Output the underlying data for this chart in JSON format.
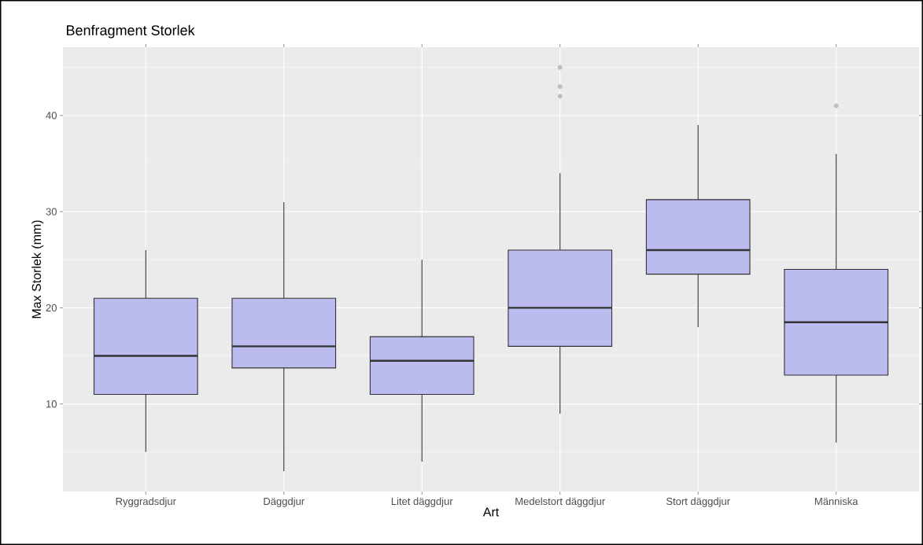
{
  "chart_data": {
    "type": "box",
    "title": "Benfragment Storlek",
    "xlabel": "Art",
    "ylabel": "Max Storlek (mm)",
    "categories": [
      "Ryggradsdjur",
      "Däggdjur",
      "Litet däggdjur",
      "Medelstort däggdjur",
      "Stort däggdjur",
      "Människa"
    ],
    "boxes": [
      {
        "low": 5,
        "q1": 11,
        "median": 15,
        "q3": 21,
        "high": 26
      },
      {
        "low": 3,
        "q1": 13.75,
        "median": 16,
        "q3": 21,
        "high": 31
      },
      {
        "low": 4,
        "q1": 11,
        "median": 14.5,
        "q3": 17,
        "high": 25
      },
      {
        "low": 9,
        "q1": 16,
        "median": 20,
        "q3": 26,
        "high": 34,
        "outliers": [
          42,
          43,
          45
        ]
      },
      {
        "low": 18,
        "q1": 23.5,
        "median": 26,
        "q3": 31.25,
        "high": 39
      },
      {
        "low": 6,
        "q1": 13,
        "median": 18.5,
        "q3": 24,
        "high": 36,
        "outliers": [
          41
        ]
      }
    ],
    "color": "#bbbbf0",
    "ylim": [
      0.9,
      47.1
    ],
    "yticks": [
      10,
      20,
      30,
      40
    ],
    "grid": true
  }
}
